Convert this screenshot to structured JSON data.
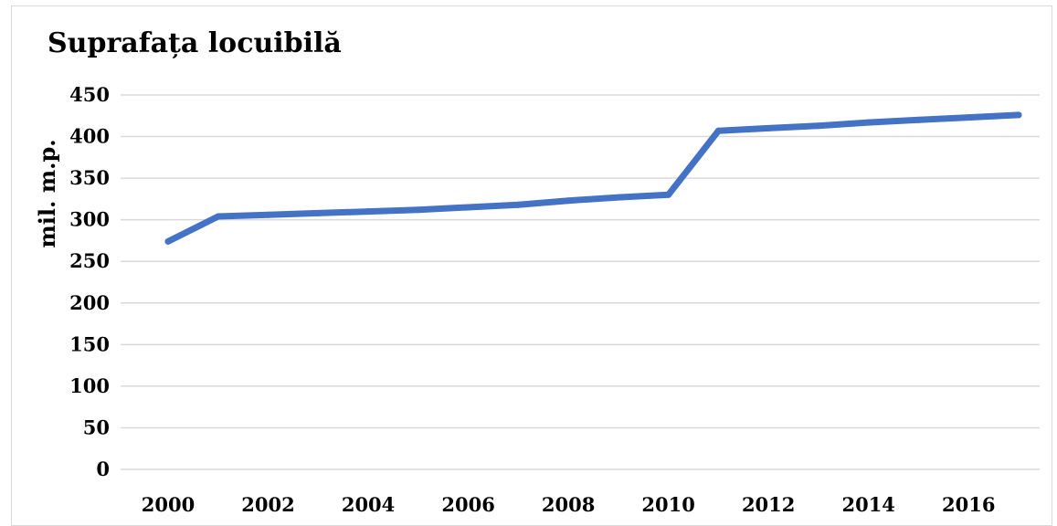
{
  "colors": {
    "line": "#4472c4",
    "grid": "#d9d9d9",
    "text": "#000000",
    "background": "#ffffff"
  },
  "chart_data": {
    "type": "line",
    "title": "Suprafața locuibilă",
    "xlabel": "",
    "ylabel": "mil. m.p.",
    "x": [
      2000,
      2001,
      2002,
      2003,
      2004,
      2005,
      2006,
      2007,
      2008,
      2009,
      2010,
      2011,
      2012,
      2013,
      2014,
      2015,
      2016,
      2017
    ],
    "series": [
      {
        "values": [
          274,
          304,
          306,
          308,
          310,
          312,
          315,
          318,
          323,
          327,
          330,
          407,
          410,
          413,
          417,
          420,
          423,
          426
        ]
      }
    ],
    "xticks": [
      2000,
      2002,
      2004,
      2006,
      2008,
      2010,
      2012,
      2014,
      2016
    ],
    "yticks": [
      0,
      50,
      100,
      150,
      200,
      250,
      300,
      350,
      400,
      450
    ],
    "xlim": [
      2000,
      2017
    ],
    "ylim": [
      0,
      450
    ],
    "grid": true,
    "legend": "none"
  }
}
